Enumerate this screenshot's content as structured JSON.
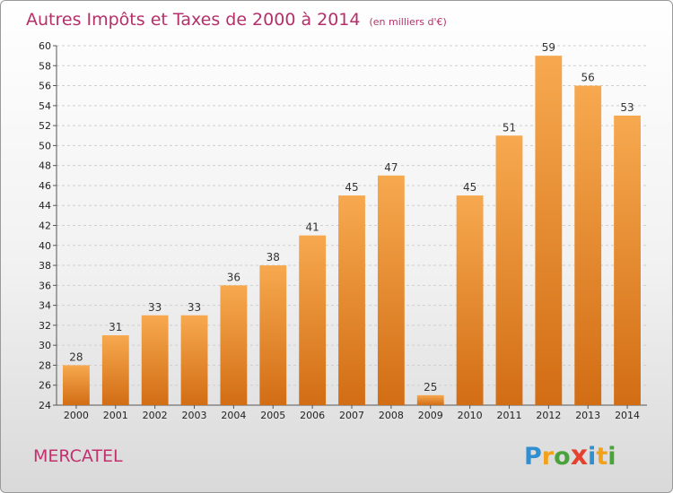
{
  "chart_data": {
    "type": "bar",
    "title": "Autres Impôts et Taxes de 2000 à 2014",
    "subtitle": "(en milliers d'€)",
    "xlabel": "",
    "ylabel": "",
    "categories": [
      "2000",
      "2001",
      "2002",
      "2003",
      "2004",
      "2005",
      "2006",
      "2007",
      "2008",
      "2009",
      "2010",
      "2011",
      "2012",
      "2013",
      "2014"
    ],
    "values": [
      28,
      31,
      33,
      33,
      36,
      38,
      41,
      45,
      47,
      25,
      45,
      51,
      59,
      56,
      53
    ],
    "ylim": [
      24,
      60
    ],
    "ytick_step": 2,
    "grid": true,
    "bar_color": "#f0922f",
    "bar_color_dark": "#d26d14"
  },
  "footer": {
    "commune": "MERCATEL",
    "logo_letters": [
      {
        "ch": "P",
        "color": "#2f8fd0"
      },
      {
        "ch": "r",
        "color": "#f2a21a"
      },
      {
        "ch": "o",
        "color": "#4aa33a"
      },
      {
        "ch": "x",
        "color": "#e3432e"
      },
      {
        "ch": "i",
        "color": "#2f8fd0"
      },
      {
        "ch": "t",
        "color": "#f2a21a"
      },
      {
        "ch": "i",
        "color": "#4aa33a"
      }
    ]
  }
}
